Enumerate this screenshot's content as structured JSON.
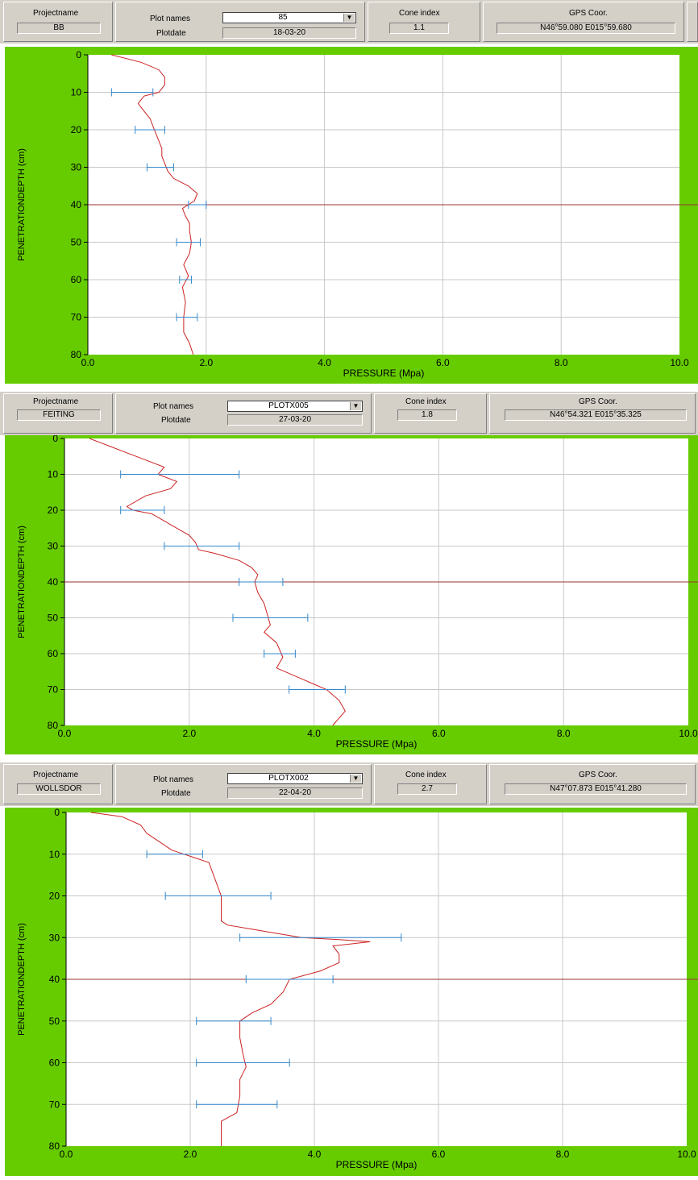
{
  "panels": [
    {
      "header": {
        "projectname_label": "Projectname",
        "projectname": "BB",
        "plotnames_label": "Plot names",
        "plot_name": "85",
        "plotdate_label": "Plotdate",
        "plotdate": "18-03-20",
        "coneindex_label": "Cone index",
        "cone_index": "1.1",
        "gps_label": "GPS Coor.",
        "gps": "N46°59.080 E015°59.680",
        "dropdown_icon": "chevron-down-icon"
      }
    },
    {
      "header": {
        "projectname_label": "Projectname",
        "projectname": "FEITING",
        "plotnames_label": "Plot names",
        "plot_name": "PLOTX005",
        "plotdate_label": "Plotdate",
        "plotdate": "27-03-20",
        "coneindex_label": "Cone index",
        "cone_index": "1.8",
        "gps_label": "GPS Coor.",
        "gps": "N46°54.321 E015°35.325",
        "dropdown_icon": "chevron-down-icon"
      }
    },
    {
      "header": {
        "projectname_label": "Projectname",
        "projectname": "WOLLSDOR",
        "plotnames_label": "Plot names",
        "plot_name": "PLOTX002",
        "plotdate_label": "Plotdate",
        "plotdate": "22-04-20",
        "coneindex_label": "Cone index",
        "cone_index": "2.7",
        "gps_label": "GPS Coor.",
        "gps": "N47°07.873 E015°41.280",
        "dropdown_icon": "chevron-down-icon"
      }
    }
  ],
  "colors": {
    "frame": "#66cc00",
    "curve": "#cc2222",
    "errorbar": "#3388cc",
    "refline": "#993333",
    "grid": "#c8c8c8"
  },
  "chart_data": [
    {
      "type": "line",
      "xlabel": "PRESSURE  (Mpa)",
      "ylabel": "PENETRATIONDEPTH (cm)",
      "xlim": [
        0,
        10
      ],
      "ylim": [
        80,
        0
      ],
      "grid": true,
      "xticks": [
        "0.0",
        "2.0",
        "4.0",
        "6.0",
        "8.0",
        "10.0"
      ],
      "yticks": [
        "0",
        "10",
        "20",
        "30",
        "40",
        "50",
        "60",
        "70",
        "80"
      ],
      "reference_depth": 40,
      "series": [
        {
          "x": [
            0.4,
            0.9,
            1.2,
            1.3,
            1.3,
            1.2,
            0.95,
            0.85,
            0.95,
            1.05,
            1.1,
            1.15,
            1.2,
            1.25,
            1.25,
            1.3,
            1.35,
            1.45,
            1.7,
            1.85,
            1.8,
            1.6,
            1.65,
            1.72,
            1.72,
            1.75,
            1.72,
            1.62,
            1.7,
            1.6,
            1.65,
            1.62,
            1.62,
            1.72,
            1.78
          ],
          "y": [
            0,
            2,
            4,
            6,
            8,
            10,
            11,
            13,
            15,
            17,
            19,
            21,
            23,
            25,
            27,
            29,
            31,
            33,
            35,
            37,
            39,
            41,
            43,
            45,
            47,
            50,
            53,
            56,
            59,
            62,
            66,
            70,
            74,
            77,
            80
          ]
        }
      ],
      "errorbars": [
        {
          "depth": 10,
          "low": 0.4,
          "high": 1.1
        },
        {
          "depth": 20,
          "low": 0.8,
          "high": 1.3
        },
        {
          "depth": 30,
          "low": 1.0,
          "high": 1.45
        },
        {
          "depth": 40,
          "low": 1.7,
          "high": 2.0
        },
        {
          "depth": 50,
          "low": 1.5,
          "high": 1.9
        },
        {
          "depth": 60,
          "low": 1.55,
          "high": 1.75
        },
        {
          "depth": 70,
          "low": 1.5,
          "high": 1.85
        }
      ]
    },
    {
      "type": "line",
      "xlabel": "PRESSURE  (Mpa)",
      "ylabel": "PENETRATIONDEPTH (cm)",
      "xlim": [
        0,
        10
      ],
      "ylim": [
        80,
        0
      ],
      "grid": true,
      "xticks": [
        "0.0",
        "2.0",
        "4.0",
        "6.0",
        "8.0",
        "10.0"
      ],
      "yticks": [
        "0",
        "10",
        "20",
        "30",
        "40",
        "50",
        "60",
        "70",
        "80"
      ],
      "reference_depth": 40,
      "series": [
        {
          "x": [
            0.4,
            0.7,
            1.0,
            1.3,
            1.6,
            1.5,
            1.8,
            1.7,
            1.3,
            1.0,
            1.1,
            1.4,
            1.6,
            1.8,
            2.0,
            2.1,
            2.15,
            2.4,
            2.8,
            3.0,
            3.1,
            3.05,
            3.1,
            3.2,
            3.25,
            3.3,
            3.2,
            3.4,
            3.5,
            3.4,
            3.8,
            4.2,
            4.4,
            4.5,
            4.4,
            4.3
          ],
          "y": [
            0,
            2,
            4,
            6,
            8,
            10,
            12,
            14,
            16,
            19,
            20,
            21,
            23,
            25,
            27,
            29,
            31,
            32,
            34,
            36,
            38,
            40,
            43,
            46,
            49,
            52,
            54,
            57,
            61,
            64,
            67,
            70,
            73,
            76,
            78,
            80
          ]
        }
      ],
      "errorbars": [
        {
          "depth": 10,
          "low": 0.9,
          "high": 2.8
        },
        {
          "depth": 20,
          "low": 0.9,
          "high": 1.6
        },
        {
          "depth": 30,
          "low": 1.6,
          "high": 2.8
        },
        {
          "depth": 40,
          "low": 2.8,
          "high": 3.5
        },
        {
          "depth": 50,
          "low": 2.7,
          "high": 3.9
        },
        {
          "depth": 60,
          "low": 3.2,
          "high": 3.7
        },
        {
          "depth": 70,
          "low": 3.6,
          "high": 4.5
        }
      ]
    },
    {
      "type": "line",
      "xlabel": "PRESSURE  (Mpa)",
      "ylabel": "PENETRATIONDEPTH (cm)",
      "xlim": [
        0,
        10
      ],
      "ylim": [
        80,
        0
      ],
      "grid": true,
      "xticks": [
        "0.0",
        "2.0",
        "4.0",
        "6.0",
        "8.0",
        "10.0"
      ],
      "yticks": [
        "0",
        "10",
        "20",
        "30",
        "40",
        "50",
        "60",
        "70",
        "80"
      ],
      "reference_depth": 40,
      "series": [
        {
          "x": [
            0.4,
            0.9,
            1.2,
            1.3,
            1.5,
            1.7,
            1.9,
            2.1,
            2.3,
            2.35,
            2.4,
            2.45,
            2.5,
            2.5,
            2.5,
            2.6,
            3.0,
            3.4,
            3.8,
            4.4,
            4.9,
            4.3,
            4.4,
            4.4,
            4.1,
            3.6,
            3.5,
            3.3,
            3.0,
            2.8,
            2.8,
            2.85,
            2.9,
            2.8,
            2.8,
            2.75,
            2.5,
            2.5
          ],
          "y": [
            0,
            1,
            3,
            5,
            7,
            9,
            10,
            11,
            12,
            14,
            16,
            18,
            20,
            23,
            26,
            27,
            28,
            29,
            30,
            30.5,
            31,
            32,
            34,
            36,
            38,
            40,
            43,
            46,
            48,
            50,
            54,
            58,
            61,
            64,
            68,
            72,
            74,
            80
          ]
        }
      ],
      "errorbars": [
        {
          "depth": 10,
          "low": 1.3,
          "high": 2.2
        },
        {
          "depth": 20,
          "low": 1.6,
          "high": 3.3
        },
        {
          "depth": 30,
          "low": 2.8,
          "high": 5.4
        },
        {
          "depth": 40,
          "low": 2.9,
          "high": 4.3
        },
        {
          "depth": 50,
          "low": 2.1,
          "high": 3.3
        },
        {
          "depth": 60,
          "low": 2.1,
          "high": 3.6
        },
        {
          "depth": 70,
          "low": 2.1,
          "high": 3.4
        }
      ]
    }
  ]
}
